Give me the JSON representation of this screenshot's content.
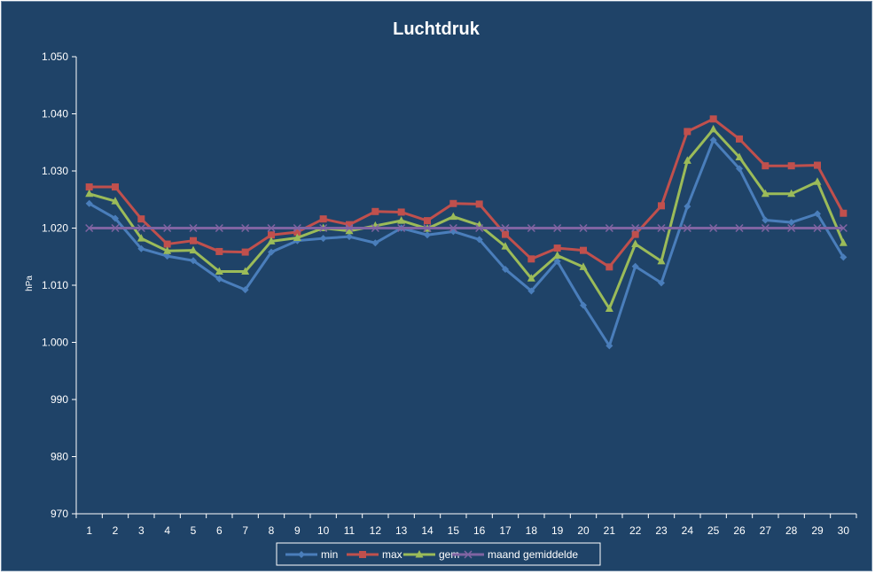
{
  "chart_data": {
    "type": "line",
    "title": "Luchtdruk",
    "xlabel": "",
    "ylabel": "hPa",
    "ylim": [
      970,
      1050
    ],
    "ytick_values": [
      970,
      980,
      990,
      1000,
      1010,
      1020,
      1030,
      1040,
      1050
    ],
    "ytick_labels": [
      "970",
      "980",
      "990",
      "1.000",
      "1.010",
      "1.020",
      "1.030",
      "1.040",
      "1.050"
    ],
    "categories": [
      "1",
      "2",
      "3",
      "4",
      "5",
      "6",
      "7",
      "8",
      "9",
      "10",
      "11",
      "12",
      "13",
      "14",
      "15",
      "16",
      "17",
      "18",
      "19",
      "20",
      "21",
      "22",
      "23",
      "24",
      "25",
      "26",
      "27",
      "28",
      "29",
      "30"
    ],
    "grid": false,
    "legend_position": "bottom",
    "series": [
      {
        "name": "min",
        "color": "#4a7ebb",
        "marker": "diamond",
        "values": [
          1024.3,
          1021.7,
          1016.4,
          1015.1,
          1014.3,
          1011.1,
          1009.2,
          1015.8,
          1017.8,
          1018.2,
          1018.5,
          1017.4,
          1020.0,
          1018.8,
          1019.4,
          1018.0,
          1012.8,
          1009.0,
          1014.2,
          1006.5,
          999.4,
          1013.3,
          1010.4,
          1023.8,
          1035.4,
          1030.4,
          1021.4,
          1021.0,
          1022.5,
          1014.9
        ]
      },
      {
        "name": "max",
        "color": "#c0504d",
        "marker": "square",
        "values": [
          1027.2,
          1027.2,
          1021.6,
          1017.2,
          1017.8,
          1015.9,
          1015.8,
          1018.8,
          1019.3,
          1021.6,
          1020.6,
          1022.9,
          1022.8,
          1021.3,
          1024.3,
          1024.2,
          1018.9,
          1014.6,
          1016.5,
          1016.1,
          1013.2,
          1018.9,
          1023.9,
          1036.9,
          1039.1,
          1035.6,
          1030.9,
          1030.9,
          1031.0,
          1022.6
        ]
      },
      {
        "name": "gem",
        "color": "#9bbb59",
        "marker": "triangle",
        "values": [
          1026.0,
          1024.7,
          1018.2,
          1016.0,
          1016.1,
          1012.4,
          1012.4,
          1017.7,
          1018.3,
          1020.0,
          1019.5,
          1020.4,
          1021.3,
          1019.9,
          1022.0,
          1020.5,
          1016.8,
          1011.2,
          1015.2,
          1013.2,
          1005.9,
          1017.2,
          1014.2,
          1031.8,
          1037.3,
          1032.4,
          1026.0,
          1026.0,
          1028.1,
          1017.4
        ]
      },
      {
        "name": "maand gemiddelde",
        "color": "#8064a2",
        "marker": "x",
        "values": [
          1020.0,
          1020.0,
          1020.0,
          1020.0,
          1020.0,
          1020.0,
          1020.0,
          1020.0,
          1020.0,
          1020.0,
          1020.0,
          1020.0,
          1020.0,
          1020.0,
          1020.0,
          1020.0,
          1020.0,
          1020.0,
          1020.0,
          1020.0,
          1020.0,
          1020.0,
          1020.0,
          1020.0,
          1020.0,
          1020.0,
          1020.0,
          1020.0,
          1020.0,
          1020.0
        ]
      }
    ]
  },
  "colors": {
    "background": "#1f4368",
    "text": "#ffffff",
    "axis": "#ffffff"
  }
}
